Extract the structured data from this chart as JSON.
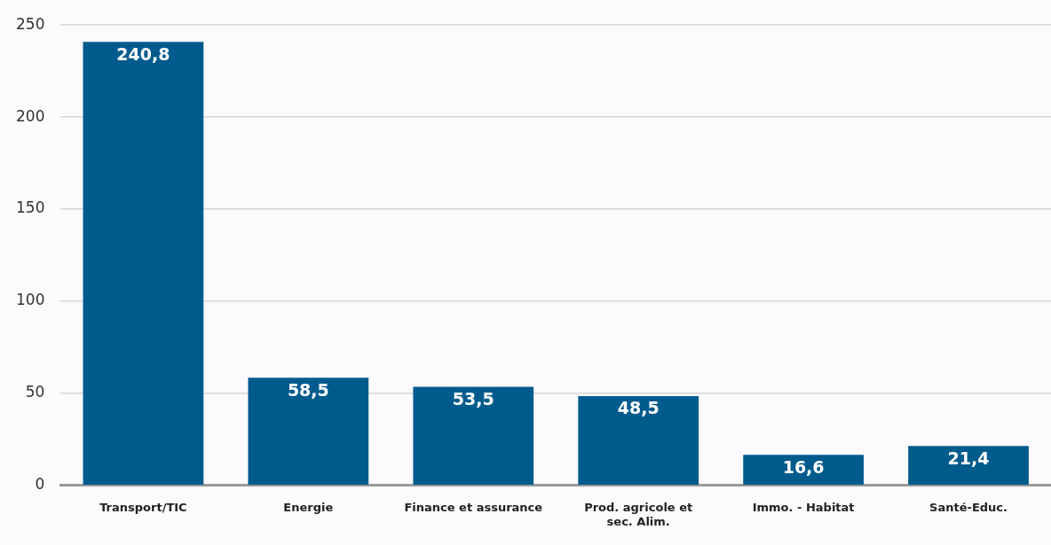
{
  "chart_data": {
    "type": "bar",
    "categories": [
      "Transport/TIC",
      "Energie",
      "Finance et assurance",
      "Prod. agricole et sec. Alim.",
      "Immo. - Habitat",
      "Santé-Educ."
    ],
    "values": [
      240.8,
      58.5,
      53.5,
      48.5,
      16.6,
      21.4
    ],
    "value_labels": [
      "240,8",
      "58,5",
      "53,5",
      "48,5",
      "16,6",
      "21,4"
    ],
    "color": "#005b8d",
    "ylim": [
      0,
      250
    ],
    "yticks": [
      0,
      50,
      100,
      150,
      200,
      250
    ],
    "grid": "y",
    "legend": false
  }
}
